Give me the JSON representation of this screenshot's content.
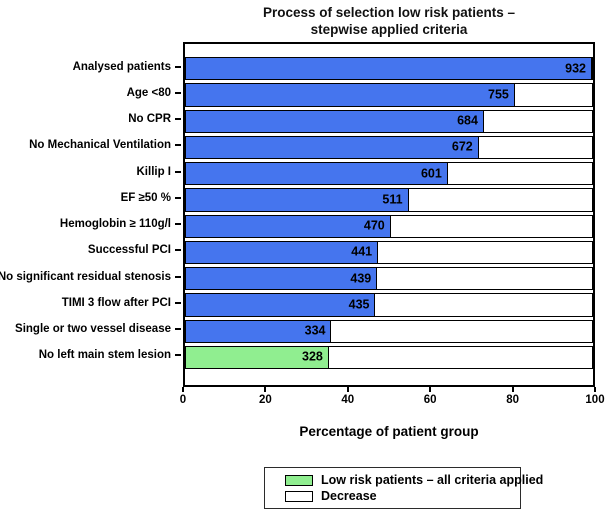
{
  "title": {
    "line1": "Process of selection  low risk patients –",
    "line2": "stepwise applied criteria"
  },
  "chart_data": {
    "type": "bar",
    "orientation": "horizontal",
    "title": "Process of selection  low risk patients – stepwise applied criteria",
    "categories": [
      "Analysed patients",
      "Age <80",
      "No CPR",
      "No Mechanical Ventilation",
      "Killip I",
      "EF ≥50 %",
      "Hemoglobin ≥ 110g/l",
      "Successful PCI",
      "No significant residual stenosis",
      "TIMI 3 flow after PCI",
      "Single or two vessel disease",
      "No left main stem lesion"
    ],
    "values": [
      932,
      755,
      684,
      672,
      601,
      511,
      470,
      441,
      439,
      435,
      334,
      328
    ],
    "max_value": 932,
    "xlabel": "Percentage of patient group",
    "x_ticks": [
      0,
      20,
      40,
      60,
      80,
      100
    ],
    "xlim": [
      0,
      100
    ],
    "grid": false,
    "legend_position": "bottom",
    "colors": {
      "bar_default": "#4575ee",
      "bar_highlight": "#90ee90",
      "decrease_fill": "#ffffff",
      "border": "#000000"
    },
    "highlight_index": 11,
    "legend": [
      {
        "label": "Low risk patients – all criteria applied",
        "color": "#90ee90"
      },
      {
        "label": "Decrease",
        "color": "#ffffff"
      }
    ]
  }
}
